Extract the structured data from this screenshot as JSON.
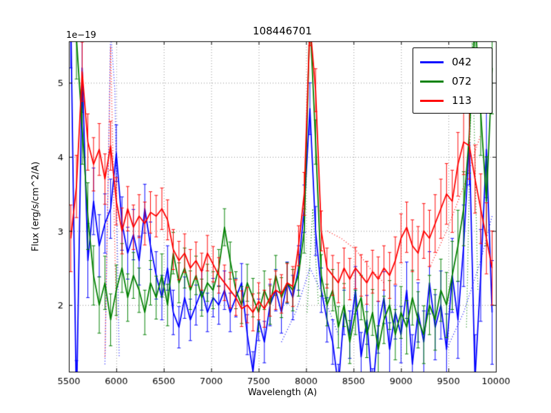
{
  "figure": {
    "background": "#ffffff"
  },
  "chart_data": {
    "type": "line",
    "title": "108446701",
    "xlabel": "Wavelength (A)",
    "ylabel": "Flux (erg/s/cm^2/A)",
    "y_scale_offset": "1e−19",
    "xlim": [
      5500,
      10000
    ],
    "ylim": [
      1.1,
      5.56
    ],
    "xticks": [
      5500,
      6000,
      6500,
      7000,
      7500,
      8000,
      8500,
      9000,
      9500,
      10000
    ],
    "xtick_labels": [
      "5500",
      "6000",
      "6500",
      "7000",
      "7500",
      "8000",
      "8500",
      "9000",
      "9500",
      "10000"
    ],
    "yticks": [
      2,
      3,
      4,
      5
    ],
    "ytick_labels": [
      "2",
      "3",
      "4",
      "5"
    ],
    "grid": true,
    "grid_color": "#8a8a8a",
    "axes_color": "#000000",
    "legend_position": "upper right",
    "x_start": 5520,
    "x_step": 60,
    "series": [
      {
        "name": "042",
        "color": "#0000ff",
        "values": [
          5.9,
          0.6,
          5.2,
          2.6,
          3.4,
          2.8,
          3.1,
          3.3,
          4.05,
          3.1,
          2.7,
          2.95,
          2.6,
          3.3,
          2.8,
          2.4,
          2.1,
          2.5,
          1.9,
          1.7,
          2.1,
          1.8,
          2.0,
          2.2,
          1.9,
          2.1,
          2.0,
          2.2,
          1.9,
          2.1,
          2.3,
          1.6,
          1.1,
          1.8,
          1.5,
          2.0,
          2.2,
          1.9,
          2.3,
          2.1,
          2.5,
          3.3,
          4.65,
          3.0,
          2.2,
          1.8,
          1.5,
          0.9,
          1.9,
          1.6,
          2.2,
          1.3,
          1.8,
          0.8,
          1.7,
          2.1,
          1.4,
          1.9,
          1.6,
          2.2,
          1.2,
          1.9,
          1.5,
          2.3,
          1.7,
          2.0,
          1.4,
          2.4,
          1.8,
          2.8,
          4.2,
          1.0,
          2.4,
          4.1,
          1.9
        ],
        "err": [
          0.7,
          0.65,
          0.6,
          0.5,
          0.45,
          0.42,
          0.4,
          0.4,
          0.38,
          0.36,
          0.35,
          0.34,
          0.33,
          0.33,
          0.32,
          0.32,
          0.3,
          0.3,
          0.3,
          0.28,
          0.28,
          0.28,
          0.27,
          0.27,
          0.26,
          0.26,
          0.26,
          0.26,
          0.26,
          0.26,
          0.26,
          0.27,
          0.27,
          0.28,
          0.28,
          0.28,
          0.28,
          0.28,
          0.28,
          0.3,
          0.3,
          0.32,
          0.35,
          0.33,
          0.3,
          0.3,
          0.3,
          0.3,
          0.3,
          0.32,
          0.32,
          0.33,
          0.33,
          0.34,
          0.35,
          0.35,
          0.36,
          0.36,
          0.38,
          0.38,
          0.4,
          0.4,
          0.42,
          0.42,
          0.44,
          0.46,
          0.48,
          0.5,
          0.52,
          0.55,
          0.58,
          0.6,
          0.62,
          0.65,
          0.7
        ]
      },
      {
        "name": "072",
        "color": "#008000",
        "values": [
          6.2,
          5.6,
          4.4,
          3.2,
          2.4,
          2.0,
          2.3,
          1.8,
          2.2,
          2.5,
          2.1,
          2.4,
          2.2,
          1.9,
          2.3,
          2.1,
          2.4,
          2.0,
          2.7,
          2.3,
          2.5,
          2.2,
          2.4,
          2.1,
          2.3,
          2.2,
          2.5,
          3.05,
          2.6,
          2.2,
          2.0,
          2.3,
          2.1,
          1.9,
          2.2,
          2.0,
          2.4,
          2.1,
          2.3,
          2.2,
          2.4,
          3.0,
          5.9,
          4.2,
          2.4,
          2.0,
          2.2,
          1.7,
          2.0,
          1.5,
          1.9,
          2.1,
          1.6,
          1.9,
          1.4,
          1.8,
          2.0,
          1.6,
          1.9,
          1.7,
          2.1,
          1.8,
          1.6,
          2.0,
          1.8,
          2.2,
          2.0,
          2.4,
          2.8,
          3.3,
          4.3,
          5.9,
          4.6,
          3.4,
          5.2
        ],
        "err": [
          0.6,
          0.55,
          0.5,
          0.45,
          0.4,
          0.38,
          0.36,
          0.35,
          0.34,
          0.33,
          0.32,
          0.31,
          0.3,
          0.3,
          0.3,
          0.29,
          0.29,
          0.28,
          0.28,
          0.27,
          0.27,
          0.26,
          0.26,
          0.25,
          0.25,
          0.25,
          0.25,
          0.25,
          0.25,
          0.25,
          0.25,
          0.25,
          0.26,
          0.26,
          0.26,
          0.26,
          0.27,
          0.27,
          0.27,
          0.28,
          0.28,
          0.3,
          0.32,
          0.3,
          0.28,
          0.28,
          0.28,
          0.28,
          0.29,
          0.29,
          0.3,
          0.3,
          0.31,
          0.31,
          0.32,
          0.32,
          0.33,
          0.34,
          0.35,
          0.36,
          0.37,
          0.38,
          0.39,
          0.4,
          0.41,
          0.42,
          0.44,
          0.46,
          0.48,
          0.5,
          0.52,
          0.55,
          0.58,
          0.6,
          0.62
        ]
      },
      {
        "name": "113",
        "color": "#ff0000",
        "values": [
          2.9,
          3.6,
          5.15,
          4.2,
          3.9,
          4.1,
          3.7,
          4.15,
          3.4,
          3.0,
          3.3,
          3.05,
          3.2,
          3.1,
          3.25,
          3.2,
          3.3,
          3.15,
          2.75,
          2.6,
          2.7,
          2.5,
          2.6,
          2.45,
          2.7,
          2.55,
          2.4,
          2.3,
          2.2,
          2.1,
          1.95,
          2.0,
          1.9,
          2.05,
          1.95,
          2.1,
          2.2,
          2.15,
          2.3,
          2.25,
          2.8,
          3.5,
          5.8,
          4.9,
          3.0,
          2.5,
          2.4,
          2.3,
          2.5,
          2.35,
          2.5,
          2.4,
          2.3,
          2.45,
          2.35,
          2.5,
          2.4,
          2.6,
          2.9,
          3.05,
          2.8,
          2.7,
          3.0,
          2.9,
          3.1,
          3.3,
          3.5,
          3.4,
          3.9,
          4.2,
          4.15,
          3.7,
          3.3,
          2.9,
          2.5
        ],
        "err": [
          0.45,
          0.42,
          0.4,
          0.38,
          0.36,
          0.35,
          0.34,
          0.33,
          0.32,
          0.31,
          0.3,
          0.3,
          0.29,
          0.29,
          0.28,
          0.28,
          0.28,
          0.27,
          0.27,
          0.26,
          0.26,
          0.25,
          0.25,
          0.25,
          0.24,
          0.24,
          0.24,
          0.24,
          0.24,
          0.24,
          0.24,
          0.24,
          0.25,
          0.25,
          0.25,
          0.25,
          0.26,
          0.26,
          0.26,
          0.27,
          0.27,
          0.29,
          0.3,
          0.29,
          0.27,
          0.27,
          0.27,
          0.27,
          0.27,
          0.28,
          0.28,
          0.28,
          0.29,
          0.29,
          0.3,
          0.3,
          0.31,
          0.32,
          0.33,
          0.34,
          0.35,
          0.36,
          0.37,
          0.38,
          0.39,
          0.4,
          0.41,
          0.42,
          0.43,
          0.44,
          0.45,
          0.46,
          0.47,
          0.48,
          0.5
        ]
      }
    ],
    "dotted_series": [
      {
        "color": "#0000ff",
        "points": [
          [
            5880,
            1.2
          ],
          [
            5940,
            5.7
          ],
          [
            5985,
            4.9
          ],
          [
            6030,
            1.3
          ]
        ]
      },
      {
        "color": "#0000ff",
        "points": [
          [
            7740,
            1.5
          ],
          [
            7890,
            1.9
          ],
          [
            8040,
            2.5
          ],
          [
            8190,
            2.1
          ],
          [
            8340,
            1.6
          ]
        ]
      },
      {
        "color": "#0000ff",
        "points": [
          [
            9480,
            1.4
          ],
          [
            9660,
            1.9
          ],
          [
            9840,
            2.6
          ],
          [
            9960,
            3.2
          ]
        ]
      },
      {
        "color": "#ff0000",
        "points": [
          [
            5880,
            1.3
          ],
          [
            5940,
            5.5
          ],
          [
            6000,
            1.8
          ]
        ]
      },
      {
        "color": "#ff0000",
        "points": [
          [
            8220,
            3.0
          ],
          [
            8370,
            2.9
          ],
          [
            8520,
            2.75
          ],
          [
            8670,
            2.5
          ],
          [
            8820,
            2.3
          ]
        ]
      },
      {
        "color": "#ff0000",
        "points": [
          [
            9300,
            2.5
          ],
          [
            9480,
            3.0
          ],
          [
            9660,
            3.6
          ],
          [
            9840,
            4.3
          ]
        ]
      },
      {
        "color": "#008000",
        "points": [
          [
            8010,
            1.9
          ],
          [
            8070,
            3.3
          ],
          [
            8130,
            2.0
          ]
        ]
      },
      {
        "color": "#008000",
        "points": [
          [
            9690,
            1.7
          ],
          [
            9750,
            5.6
          ],
          [
            9810,
            2.2
          ]
        ]
      }
    ]
  }
}
